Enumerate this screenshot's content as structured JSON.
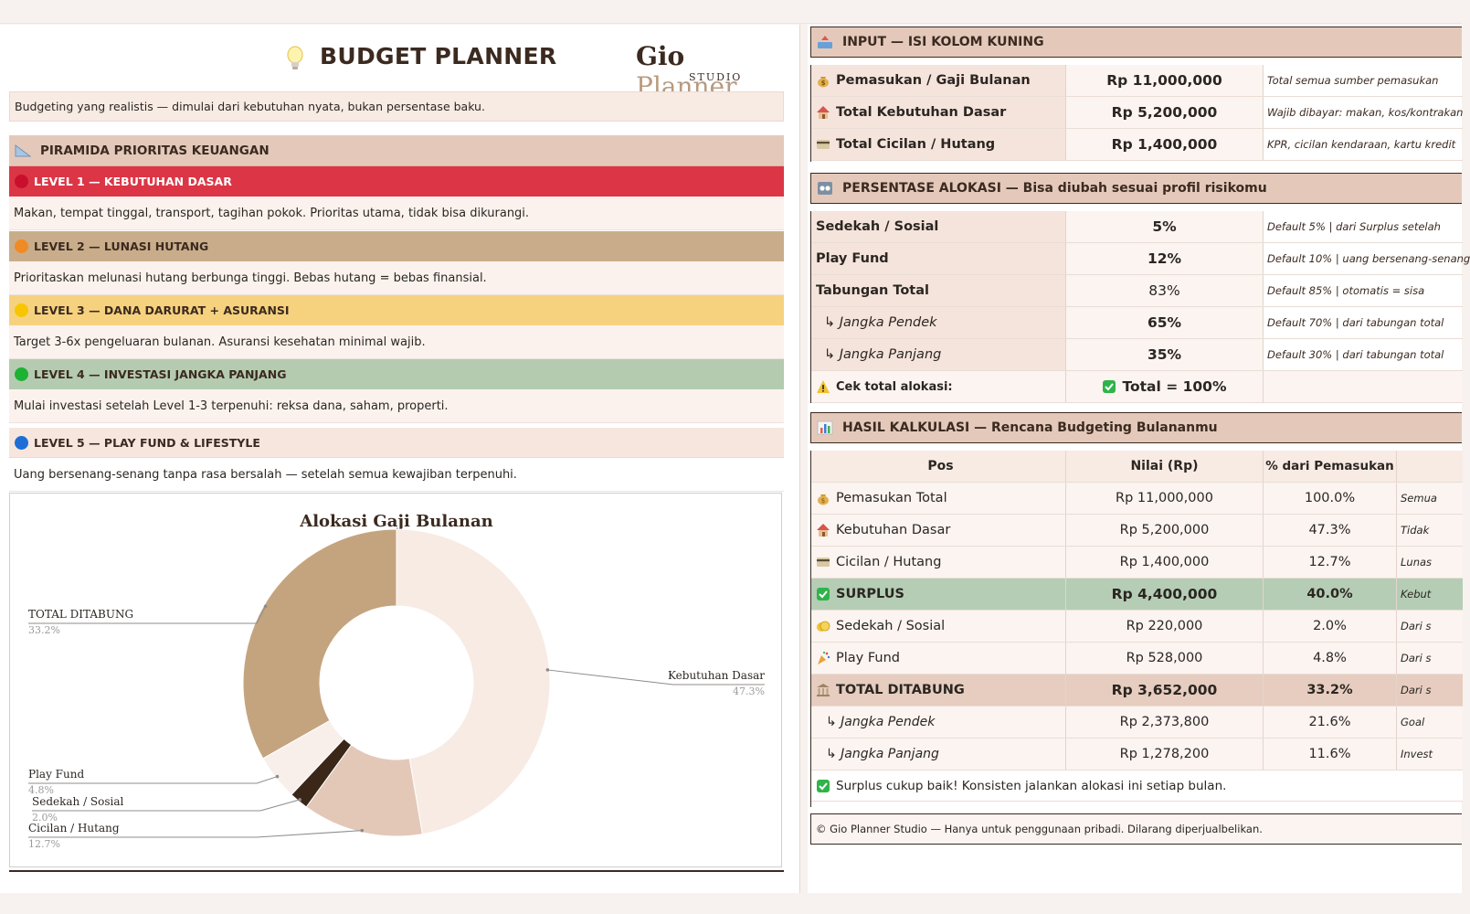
{
  "header": {
    "title": "BUDGET PLANNER",
    "logo_main": "Gio",
    "logo_accent": "Planner",
    "logo_sub": "STUDIO",
    "tagline": "Budgeting yang realistis — dimulai dari kebutuhan nyata, bukan persentase baku."
  },
  "pyramid": {
    "title": "PIRAMIDA PRIORITAS KEUANGAN",
    "levels": [
      {
        "label": "LEVEL 1 — KEBUTUHAN DASAR",
        "desc": "Makan, tempat tinggal, transport, tagihan pokok. Prioritas utama, tidak bisa dikurangi.",
        "color": "#dc3545",
        "dot": "#c8102e"
      },
      {
        "label": "LEVEL 2 — LUNASI HUTANG",
        "desc": "Prioritaskan melunasi hutang berbunga tinggi. Bebas hutang = bebas finansial.",
        "color": "#c9ad8a",
        "dot": "#f08a24"
      },
      {
        "label": "LEVEL 3 — DANA DARURAT + ASURANSI",
        "desc": "Target 3-6x pengeluaran bulanan. Asuransi kesehatan minimal wajib.",
        "color": "#f6d27f",
        "dot": "#f7c600"
      },
      {
        "label": "LEVEL 4 — INVESTASI JANGKA PANJANG",
        "desc": "Mulai investasi setelah Level 1-3 terpenuhi: reksa dana, saham, properti.",
        "color": "#b5cbb0",
        "dot": "#1db234"
      },
      {
        "label": "LEVEL 5 — PLAY FUND & LIFESTYLE",
        "desc": "Uang bersenang-senang tanpa rasa bersalah — setelah semua kewajiban terpenuhi.",
        "color": "#f6e6de",
        "dot": "#1d6fd6"
      }
    ]
  },
  "chart_data": {
    "type": "pie",
    "title": "Alokasi Gaji Bulanan",
    "categories": [
      "Kebutuhan Dasar",
      "Cicilan / Hutang",
      "Sedekah / Sosial",
      "Play Fund",
      "TOTAL DITABUNG"
    ],
    "values": [
      47.3,
      12.7,
      2.0,
      4.8,
      33.2
    ],
    "labels": [
      "47.3%",
      "12.7%",
      "2.0%",
      "4.8%",
      "33.2%"
    ],
    "colors": [
      "#f7ebe4",
      "#e3c8b8",
      "#3a2718",
      "#f8efeb",
      "#c4a47f"
    ],
    "donut": true
  },
  "input": {
    "title": "INPUT — ISI KOLOM KUNING",
    "rows": [
      {
        "label": "Pemasukan / Gaji Bulanan",
        "value": "Rp 11,000,000",
        "note": "Total semua sumber pemasukan"
      },
      {
        "label": "Total Kebutuhan Dasar",
        "value": "Rp 5,200,000",
        "note": "Wajib dibayar: makan, kos/kontrakan"
      },
      {
        "label": "Total Cicilan / Hutang",
        "value": "Rp 1,400,000",
        "note": "KPR, cicilan kendaraan, kartu kredit"
      }
    ]
  },
  "allocation": {
    "title": "PERSENTASE ALOKASI — Bisa diubah sesuai profil risikomu",
    "rows": [
      {
        "label": "Sedekah / Sosial",
        "value": "5%",
        "note": "Default 5%  |  dari Surplus setelah"
      },
      {
        "label": "Play Fund",
        "value": "12%",
        "note": "Default 10%  |  uang bersenang-senang"
      },
      {
        "label": "Tabungan Total",
        "value": "83%",
        "note": "Default 85%  |  otomatis = sisa"
      },
      {
        "label": "↳ Jangka Pendek",
        "value": "65%",
        "note": "Default 70%  |  dari tabungan total"
      },
      {
        "label": "↳ Jangka Panjang",
        "value": "35%",
        "note": "Default 30%  |  dari tabungan total"
      }
    ],
    "check_label": "Cek total alokasi:",
    "check_value": "Total = 100%"
  },
  "results": {
    "title": "HASIL KALKULASI — Rencana Budgeting Bulananmu",
    "headers": [
      "Pos",
      "Nilai (Rp)",
      "% dari Pemasukan"
    ],
    "rows": [
      {
        "label": "Pemasukan Total",
        "value": "Rp 11,000,000",
        "pct": "100.0%",
        "note": "Semua"
      },
      {
        "label": "Kebutuhan Dasar",
        "value": "Rp 5,200,000",
        "pct": "47.3%",
        "note": "Tidak"
      },
      {
        "label": "Cicilan / Hutang",
        "value": "Rp 1,400,000",
        "pct": "12.7%",
        "note": "Lunas"
      },
      {
        "label": "SURPLUS",
        "value": "Rp 4,400,000",
        "pct": "40.0%",
        "note": "Kebut"
      },
      {
        "label": "Sedekah / Sosial",
        "value": "Rp 220,000",
        "pct": "2.0%",
        "note": "Dari s"
      },
      {
        "label": "Play Fund",
        "value": "Rp 528,000",
        "pct": "4.8%",
        "note": "Dari s"
      },
      {
        "label": "TOTAL DITABUNG",
        "value": "Rp 3,652,000",
        "pct": "33.2%",
        "note": "Dari s"
      },
      {
        "label": "↳ Jangka Pendek",
        "value": "Rp 2,373,800",
        "pct": "21.6%",
        "note": "Goal"
      },
      {
        "label": "↳ Jangka Panjang",
        "value": "Rp 1,278,200",
        "pct": "11.6%",
        "note": "Invest"
      }
    ],
    "summary": "Surplus cukup baik! Konsisten jalankan alokasi ini setiap bulan."
  },
  "footer": {
    "copyright": "© Gio Planner Studio — Hanya untuk penggunaan pribadi. Dilarang diperjualbelikan."
  }
}
